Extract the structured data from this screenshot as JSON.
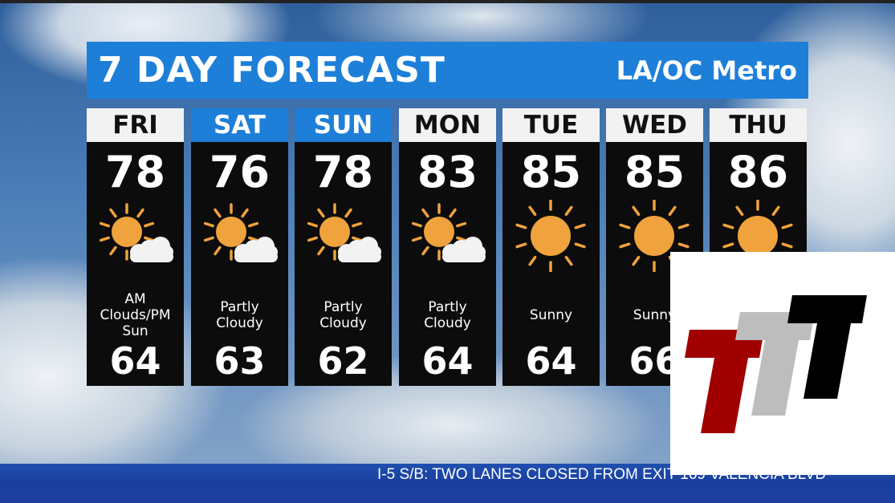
{
  "header": {
    "title": "7 DAY FORECAST",
    "region": "LA/OC Metro"
  },
  "days": [
    {
      "day": "FRI",
      "high": "78",
      "low": "64",
      "desc": [
        "AM",
        "Clouds/PM",
        "Sun"
      ],
      "icon": "partly-cloudy-icon",
      "style": "cur"
    },
    {
      "day": "SAT",
      "high": "76",
      "low": "63",
      "desc": [
        "Partly",
        "Cloudy"
      ],
      "icon": "partly-cloudy-icon",
      "style": "nxt"
    },
    {
      "day": "SUN",
      "high": "78",
      "low": "62",
      "desc": [
        "Partly",
        "Cloudy"
      ],
      "icon": "partly-cloudy-icon",
      "style": "nxt"
    },
    {
      "day": "MON",
      "high": "83",
      "low": "64",
      "desc": [
        "Partly",
        "Cloudy"
      ],
      "icon": "partly-cloudy-icon",
      "style": "oth"
    },
    {
      "day": "TUE",
      "high": "85",
      "low": "64",
      "desc": [
        "Sunny"
      ],
      "icon": "sunny-icon",
      "style": "oth"
    },
    {
      "day": "WED",
      "high": "85",
      "low": "66",
      "desc": [
        "Sunny"
      ],
      "icon": "sunny-icon",
      "style": "oth"
    },
    {
      "day": "THU",
      "high": "86",
      "low": "",
      "desc": [],
      "icon": "sunny-icon",
      "style": "oth"
    }
  ],
  "ticker": {
    "text": "I-5 S/B: TWO LANES CLOSED FROM EXIT 169 VALENCIA BLVD"
  },
  "colors": {
    "accent": "#1e7fd8",
    "sun": "#f0a23c",
    "logo_red": "#a00000",
    "logo_gray": "#bdbdbd",
    "logo_black": "#000000"
  }
}
